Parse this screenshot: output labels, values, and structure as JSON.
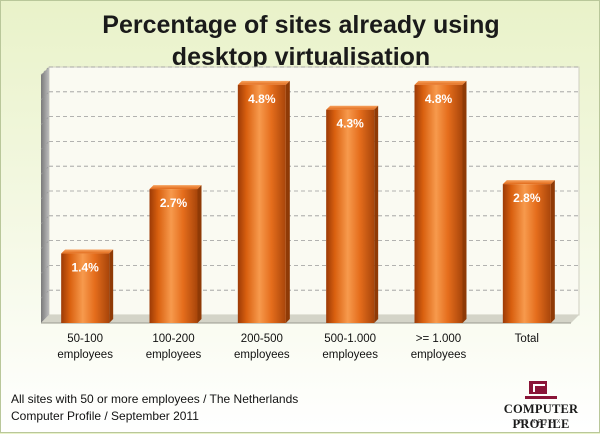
{
  "chart_data": {
    "type": "bar",
    "title_lines": [
      "Percentage of sites already using",
      "desktop virtualisation"
    ],
    "categories": [
      [
        "50-100",
        "employees"
      ],
      [
        "100-200",
        "employees"
      ],
      [
        "200-500",
        "employees"
      ],
      [
        "500-1.000",
        "employees"
      ],
      [
        ">= 1.000",
        "employees"
      ],
      [
        "Total"
      ]
    ],
    "values": [
      1.4,
      2.7,
      4.8,
      4.3,
      4.8,
      2.8
    ],
    "data_labels": [
      "1.4%",
      "2.7%",
      "4.8%",
      "4.3%",
      "4.8%",
      "2.8%"
    ],
    "ylim": [
      0,
      5
    ],
    "grid": true,
    "bar_color": "#e2691a"
  },
  "footnote": {
    "line1": "All sites with 50 or more employees / The Netherlands",
    "line2": "Computer Profile / September 2011"
  },
  "logo": {
    "name": "COMPUTER PROFILE",
    "sub": "BENELUX"
  }
}
